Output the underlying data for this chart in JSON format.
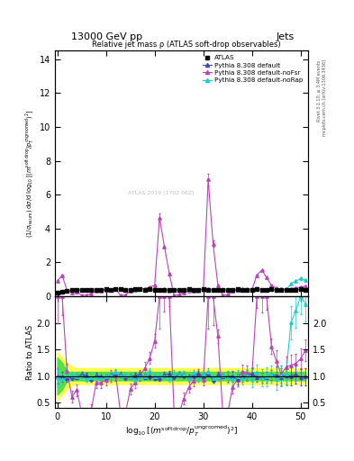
{
  "title_left": "13000 GeV pp",
  "title_right": "Jets",
  "plot_title": "Relative jet mass ρ (ATLAS soft-drop observables)",
  "watermark": "ATLAS 2019 (1702.062)",
  "ylabel_main": "(1/σ_{resum}) dσ/d log_{10}[(m^{soft drop}/p_T^{ungroomed})^2]",
  "ylabel_ratio": "Ratio to ATLAS",
  "xlabel": "log_{10}[(m^{soft drop}/p_T^{ungroomed})^2]",
  "right_label_top": "Rivet 3.1.10, ≥ 3.4M events",
  "right_label_bot": "mcplots.cern.ch [arXiv:1306.3436]",
  "ylim_main": [
    0,
    14.5
  ],
  "ylim_ratio": [
    0.4,
    2.5
  ],
  "yticks_main": [
    0,
    2,
    4,
    6,
    8,
    10,
    12,
    14
  ],
  "yticks_ratio": [
    0.5,
    1.0,
    1.5,
    2.0
  ],
  "xlim": [
    -0.5,
    51.5
  ],
  "xticks": [
    0,
    10,
    20,
    30,
    40,
    50
  ],
  "n_points": 52,
  "atlas_color": "black",
  "default_color": "#4444bb",
  "noFsr_color": "#bb44bb",
  "noRap_color": "#22cccc",
  "band_yellow": "#ffff44",
  "band_green": "#44dd44",
  "legend_entries": [
    "ATLAS",
    "Pythia 8.308 default",
    "Pythia 8.308 default-noFsr",
    "Pythia 8.308 default-noRap"
  ]
}
